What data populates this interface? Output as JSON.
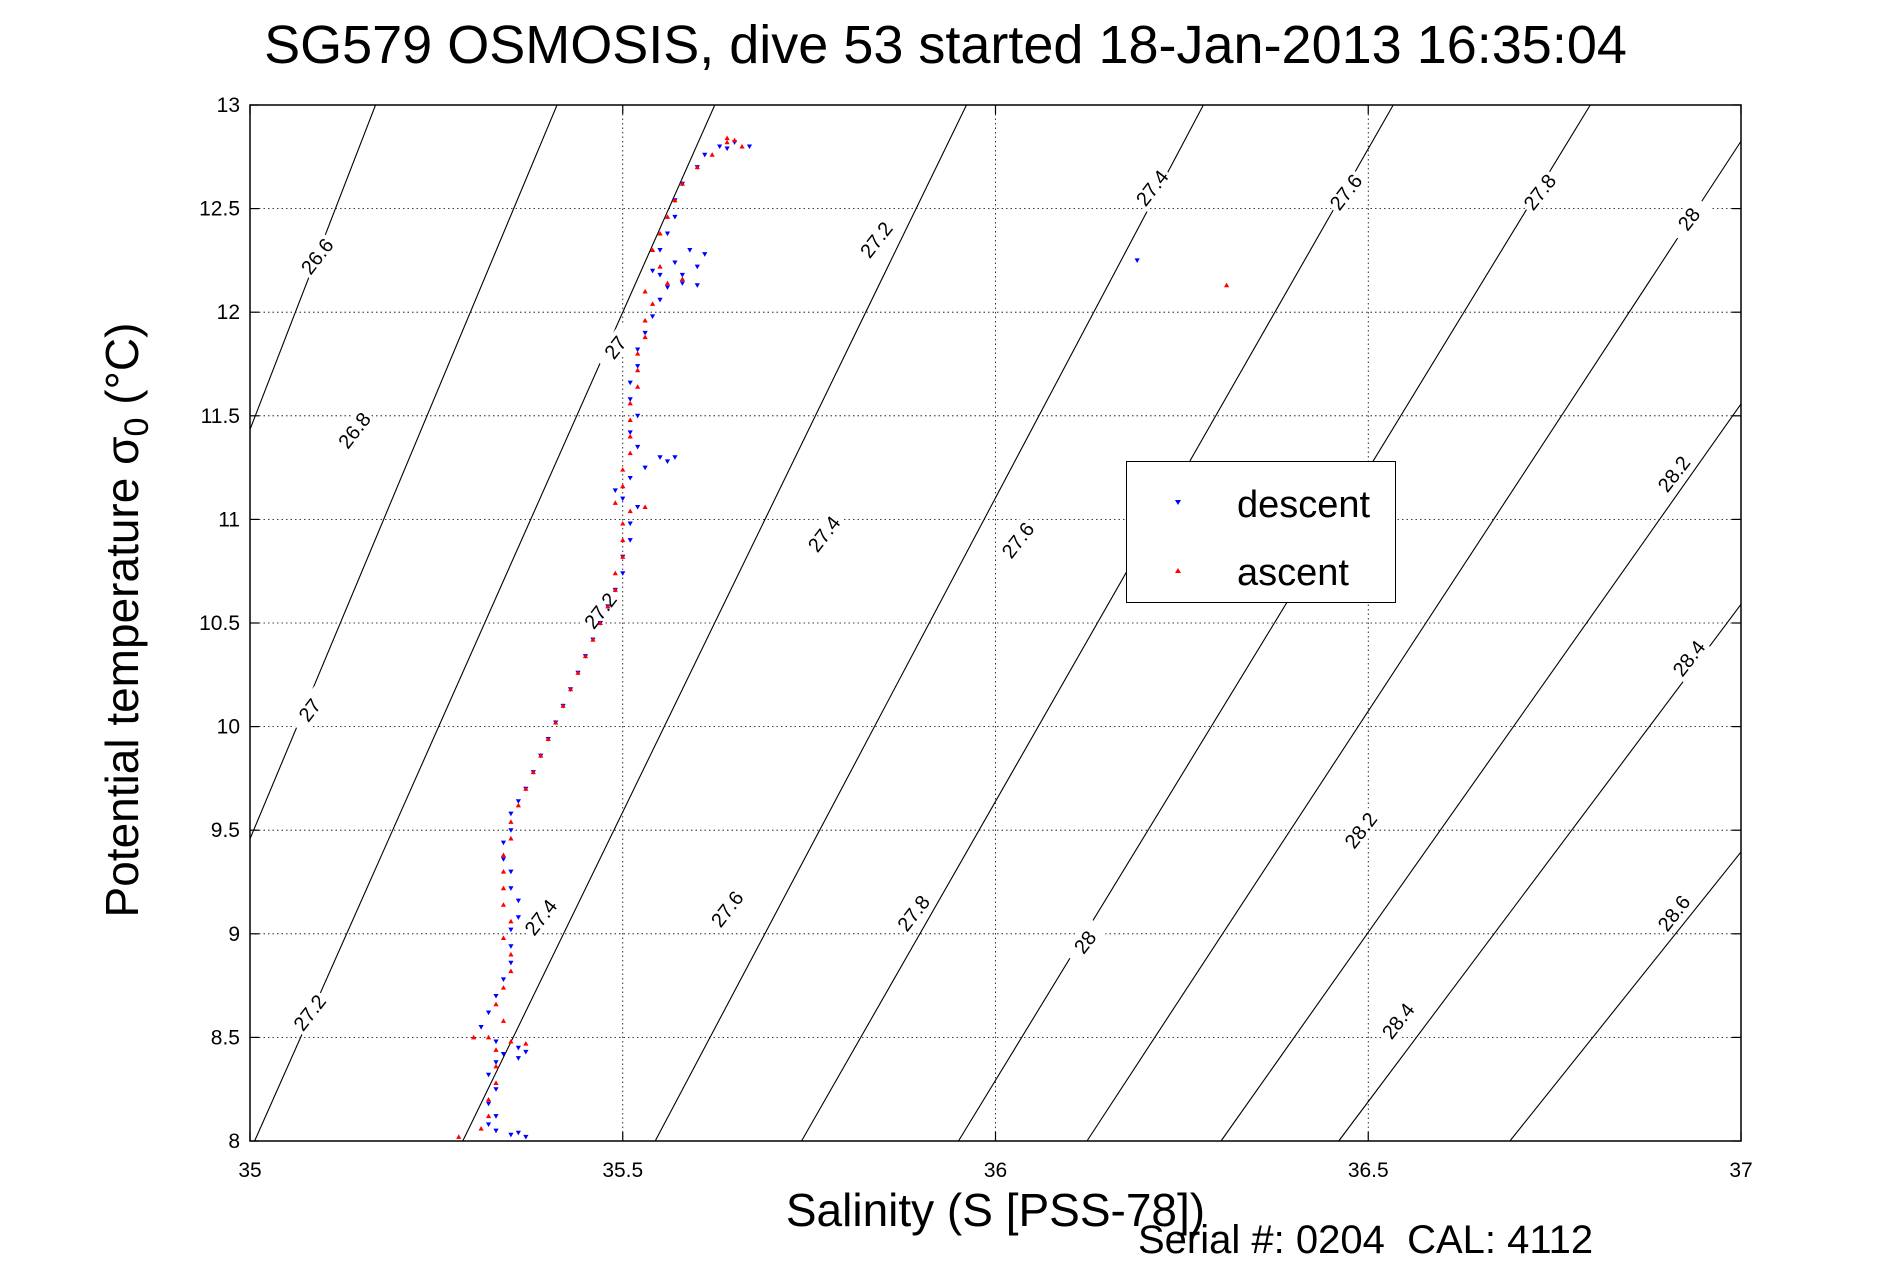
{
  "chart_data": {
    "type": "scatter",
    "title": "SG579 OSMOSIS, dive 53 started 18-Jan-2013 16:35:04",
    "xlabel": "Salinity (S [PSS-78])",
    "ylabel_main": "Potential temperature σ",
    "ylabel_sub": "0",
    "ylabel_unit": " (°C)",
    "xlim": [
      35,
      37
    ],
    "ylim": [
      8,
      13
    ],
    "xticks": [
      "35",
      "35.5",
      "36",
      "36.5",
      "37"
    ],
    "yticks": [
      "8",
      "8.5",
      "9",
      "9.5",
      "10",
      "10.5",
      "11",
      "11.5",
      "12",
      "12.5",
      "13"
    ],
    "grid": true,
    "legend_placement": "center-right",
    "isopycnal_levels": [
      "26.6",
      "26.8",
      "27",
      "27.2",
      "27.4",
      "27.6",
      "27.8",
      "28",
      "28.2",
      "28.4",
      "28.6"
    ],
    "isopycnals": [
      {
        "label": "26.6",
        "slope": 9.3,
        "anchor": [
          35.12,
          12.55
        ]
      },
      {
        "label": "26.8",
        "slope": 8.6,
        "anchor": [
          35.22,
          11.35
        ]
      },
      {
        "label": "27",
        "slope": 8.1,
        "anchor": [
          35.5,
          12.0
        ]
      },
      {
        "label": "27.2",
        "slope": 7.4,
        "anchor": [
          35.88,
          12.4
        ]
      },
      {
        "label": "27.4",
        "slope": 6.8,
        "anchor": [
          36.22,
          12.6
        ]
      },
      {
        "label": "27.6",
        "slope": 6.3,
        "anchor": [
          36.47,
          12.6
        ]
      },
      {
        "label": "27.8",
        "slope": 5.9,
        "anchor": [
          36.73,
          12.6
        ]
      },
      {
        "label": "28",
        "slope": 5.5,
        "anchor": [
          36.95,
          12.55
        ]
      },
      {
        "label": "28.2",
        "slope": 5.1,
        "anchor": [
          36.93,
          11.2
        ]
      },
      {
        "label": "28.4",
        "slope": 4.8,
        "anchor": [
          36.95,
          10.35
        ]
      },
      {
        "label": "28.6",
        "slope": 4.5,
        "anchor": [
          36.93,
          9.08
        ]
      }
    ],
    "contour_labels": [
      {
        "text": "26.6",
        "x": 35.09,
        "y": 12.27
      },
      {
        "text": "26.8",
        "x": 35.14,
        "y": 11.43
      },
      {
        "text": "27",
        "x": 35.08,
        "y": 10.08
      },
      {
        "text": "27",
        "x": 35.49,
        "y": 11.83
      },
      {
        "text": "27.2",
        "x": 35.08,
        "y": 8.62
      },
      {
        "text": "27.2",
        "x": 35.47,
        "y": 10.56
      },
      {
        "text": "27.2",
        "x": 35.84,
        "y": 12.35
      },
      {
        "text": "27.4",
        "x": 35.39,
        "y": 9.08
      },
      {
        "text": "27.4",
        "x": 35.77,
        "y": 10.93
      },
      {
        "text": "27.4",
        "x": 36.21,
        "y": 12.6
      },
      {
        "text": "27.6",
        "x": 35.64,
        "y": 9.12
      },
      {
        "text": "27.6",
        "x": 36.03,
        "y": 10.9
      },
      {
        "text": "27.6",
        "x": 36.47,
        "y": 12.58
      },
      {
        "text": "27.8",
        "x": 35.89,
        "y": 9.1
      },
      {
        "text": "27.8",
        "x": 36.73,
        "y": 12.58
      },
      {
        "text": "28",
        "x": 36.12,
        "y": 8.96
      },
      {
        "text": "28",
        "x": 36.93,
        "y": 12.45
      },
      {
        "text": "28.2",
        "x": 36.49,
        "y": 9.5
      },
      {
        "text": "28.2",
        "x": 36.91,
        "y": 11.22
      },
      {
        "text": "28.4",
        "x": 36.54,
        "y": 8.58
      },
      {
        "text": "28.4",
        "x": 36.93,
        "y": 10.33
      },
      {
        "text": "28.6",
        "x": 36.91,
        "y": 9.1
      }
    ],
    "series": [
      {
        "name": "descent",
        "color": "#0000ff",
        "marker": "triangle-down",
        "points": [
          [
            35.37,
            8.02
          ],
          [
            35.36,
            8.04
          ],
          [
            35.35,
            8.03
          ],
          [
            35.33,
            8.05
          ],
          [
            35.32,
            8.08
          ],
          [
            35.33,
            8.12
          ],
          [
            35.32,
            8.18
          ],
          [
            35.33,
            8.25
          ],
          [
            35.32,
            8.32
          ],
          [
            35.33,
            8.38
          ],
          [
            35.34,
            8.42
          ],
          [
            35.36,
            8.45
          ],
          [
            35.37,
            8.43
          ],
          [
            35.36,
            8.4
          ],
          [
            35.33,
            8.48
          ],
          [
            35.31,
            8.55
          ],
          [
            35.32,
            8.62
          ],
          [
            35.33,
            8.7
          ],
          [
            35.34,
            8.78
          ],
          [
            35.35,
            8.86
          ],
          [
            35.35,
            8.94
          ],
          [
            35.35,
            9.02
          ],
          [
            35.36,
            9.08
          ],
          [
            35.36,
            9.16
          ],
          [
            35.35,
            9.22
          ],
          [
            35.35,
            9.3
          ],
          [
            35.34,
            9.36
          ],
          [
            35.34,
            9.44
          ],
          [
            35.35,
            9.5
          ],
          [
            35.35,
            9.58
          ],
          [
            35.36,
            9.64
          ],
          [
            35.37,
            9.7
          ],
          [
            35.38,
            9.78
          ],
          [
            35.39,
            9.86
          ],
          [
            35.4,
            9.94
          ],
          [
            35.41,
            10.02
          ],
          [
            35.42,
            10.1
          ],
          [
            35.43,
            10.18
          ],
          [
            35.44,
            10.26
          ],
          [
            35.45,
            10.34
          ],
          [
            35.46,
            10.42
          ],
          [
            35.47,
            10.5
          ],
          [
            35.48,
            10.58
          ],
          [
            35.49,
            10.66
          ],
          [
            35.5,
            10.74
          ],
          [
            35.5,
            10.82
          ],
          [
            35.51,
            10.9
          ],
          [
            35.51,
            10.98
          ],
          [
            35.52,
            11.06
          ],
          [
            35.5,
            11.1
          ],
          [
            35.49,
            11.14
          ],
          [
            35.51,
            11.2
          ],
          [
            35.53,
            11.25
          ],
          [
            35.55,
            11.3
          ],
          [
            35.57,
            11.3
          ],
          [
            35.56,
            11.28
          ],
          [
            35.52,
            11.35
          ],
          [
            35.51,
            11.42
          ],
          [
            35.52,
            11.5
          ],
          [
            35.51,
            11.58
          ],
          [
            35.51,
            11.66
          ],
          [
            35.52,
            11.74
          ],
          [
            35.52,
            11.82
          ],
          [
            35.53,
            11.9
          ],
          [
            35.54,
            11.98
          ],
          [
            35.55,
            12.06
          ],
          [
            35.56,
            12.12
          ],
          [
            35.58,
            12.18
          ],
          [
            35.6,
            12.22
          ],
          [
            35.61,
            12.28
          ],
          [
            35.59,
            12.3
          ],
          [
            35.57,
            12.24
          ],
          [
            35.55,
            12.18
          ],
          [
            35.54,
            12.2
          ],
          [
            35.55,
            12.3
          ],
          [
            35.56,
            12.38
          ],
          [
            35.57,
            12.46
          ],
          [
            35.57,
            12.54
          ],
          [
            35.58,
            12.62
          ],
          [
            35.6,
            12.7
          ],
          [
            35.61,
            12.76
          ],
          [
            35.63,
            12.8
          ],
          [
            35.65,
            12.82
          ],
          [
            35.67,
            12.8
          ],
          [
            35.64,
            12.79
          ],
          [
            35.6,
            12.13
          ],
          [
            35.58,
            12.14
          ],
          [
            36.19,
            12.25
          ]
        ]
      },
      {
        "name": "ascent",
        "color": "#ff0000",
        "marker": "triangle-up",
        "points": [
          [
            35.28,
            8.02
          ],
          [
            35.31,
            8.06
          ],
          [
            35.32,
            8.12
          ],
          [
            35.32,
            8.2
          ],
          [
            35.33,
            8.28
          ],
          [
            35.33,
            8.36
          ],
          [
            35.33,
            8.44
          ],
          [
            35.3,
            8.5
          ],
          [
            35.32,
            8.5
          ],
          [
            35.35,
            8.48
          ],
          [
            35.37,
            8.47
          ],
          [
            35.34,
            8.58
          ],
          [
            35.33,
            8.66
          ],
          [
            35.34,
            8.74
          ],
          [
            35.35,
            8.82
          ],
          [
            35.35,
            8.9
          ],
          [
            35.34,
            8.98
          ],
          [
            35.35,
            9.06
          ],
          [
            35.34,
            9.14
          ],
          [
            35.34,
            9.22
          ],
          [
            35.34,
            9.3
          ],
          [
            35.34,
            9.38
          ],
          [
            35.35,
            9.46
          ],
          [
            35.35,
            9.54
          ],
          [
            35.36,
            9.62
          ],
          [
            35.37,
            9.7
          ],
          [
            35.38,
            9.78
          ],
          [
            35.39,
            9.86
          ],
          [
            35.4,
            9.94
          ],
          [
            35.41,
            10.02
          ],
          [
            35.42,
            10.1
          ],
          [
            35.43,
            10.18
          ],
          [
            35.44,
            10.26
          ],
          [
            35.45,
            10.34
          ],
          [
            35.46,
            10.42
          ],
          [
            35.47,
            10.5
          ],
          [
            35.48,
            10.58
          ],
          [
            35.49,
            10.66
          ],
          [
            35.49,
            10.74
          ],
          [
            35.5,
            10.82
          ],
          [
            35.5,
            10.9
          ],
          [
            35.5,
            10.98
          ],
          [
            35.51,
            11.04
          ],
          [
            35.53,
            11.06
          ],
          [
            35.49,
            11.08
          ],
          [
            35.5,
            11.16
          ],
          [
            35.5,
            11.24
          ],
          [
            35.51,
            11.32
          ],
          [
            35.51,
            11.4
          ],
          [
            35.51,
            11.48
          ],
          [
            35.51,
            11.56
          ],
          [
            35.52,
            11.64
          ],
          [
            35.52,
            11.72
          ],
          [
            35.52,
            11.8
          ],
          [
            35.53,
            11.88
          ],
          [
            35.53,
            11.96
          ],
          [
            35.54,
            12.04
          ],
          [
            35.53,
            12.1
          ],
          [
            35.56,
            12.14
          ],
          [
            35.58,
            12.16
          ],
          [
            35.55,
            12.22
          ],
          [
            35.54,
            12.3
          ],
          [
            35.55,
            12.38
          ],
          [
            35.56,
            12.46
          ],
          [
            35.57,
            12.54
          ],
          [
            35.58,
            12.62
          ],
          [
            35.6,
            12.7
          ],
          [
            35.62,
            12.76
          ],
          [
            35.64,
            12.82
          ],
          [
            35.64,
            12.84
          ],
          [
            35.65,
            12.83
          ],
          [
            35.66,
            12.8
          ],
          [
            36.31,
            12.13
          ]
        ]
      }
    ]
  },
  "legend": {
    "descent": "descent",
    "ascent": "ascent"
  },
  "footer": {
    "text": "Serial #: 0204  CAL: 4112"
  }
}
